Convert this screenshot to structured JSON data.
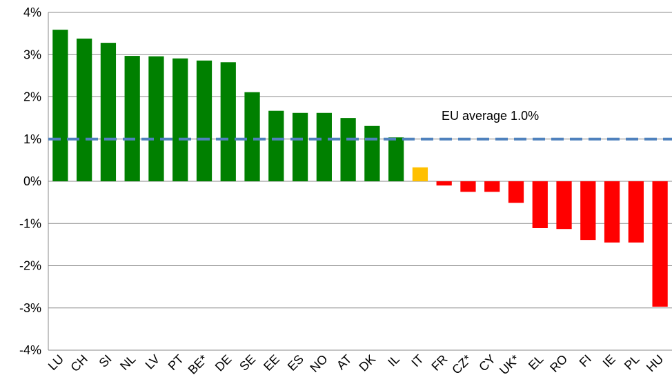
{
  "chart_data": {
    "type": "bar",
    "categories": [
      "LU",
      "CH",
      "SI",
      "NL",
      "LV",
      "PT",
      "BE*",
      "DE",
      "SE",
      "EE",
      "ES",
      "NO",
      "AT",
      "DK",
      "IL",
      "IT",
      "FR",
      "CZ*",
      "CY",
      "UK*",
      "EL",
      "RO",
      "FI",
      "IE",
      "PL",
      "HU"
    ],
    "values": [
      3.59,
      3.38,
      3.28,
      2.97,
      2.96,
      2.91,
      2.86,
      2.82,
      2.11,
      1.67,
      1.62,
      1.62,
      1.5,
      1.31,
      1.04,
      0.33,
      -0.1,
      -0.25,
      -0.25,
      -0.51,
      -1.11,
      -1.13,
      -1.39,
      -1.45,
      -1.45,
      -2.97
    ],
    "colors": [
      "#008000",
      "#008000",
      "#008000",
      "#008000",
      "#008000",
      "#008000",
      "#008000",
      "#008000",
      "#008000",
      "#008000",
      "#008000",
      "#008000",
      "#008000",
      "#008000",
      "#008000",
      "#ffc000",
      "#ff0000",
      "#ff0000",
      "#ff0000",
      "#ff0000",
      "#ff0000",
      "#ff0000",
      "#ff0000",
      "#ff0000",
      "#ff0000",
      "#ff0000"
    ],
    "ylim": [
      -4,
      4
    ],
    "yticks": [
      {
        "value": -4,
        "label": "-4%"
      },
      {
        "value": -3,
        "label": "-3%"
      },
      {
        "value": -2,
        "label": "-2%"
      },
      {
        "value": -1,
        "label": "-1%"
      },
      {
        "value": 0,
        "label": "0%"
      },
      {
        "value": 1,
        "label": "1%"
      },
      {
        "value": 2,
        "label": "2%"
      },
      {
        "value": 3,
        "label": "3%"
      },
      {
        "value": 4,
        "label": "4%"
      }
    ],
    "grid": true,
    "average": {
      "value": 1.0,
      "label": "EU average 1.0%",
      "color": "#4f81bd"
    }
  }
}
